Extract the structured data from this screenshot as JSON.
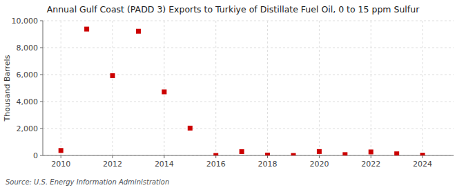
{
  "chart_data": {
    "type": "scatter",
    "title": "Annual Gulf Coast (PADD 3) Exports to Turkiye of Distillate Fuel Oil, 0 to 15 ppm Sulfur",
    "y_label": "Thousand Barrels",
    "source": "Source: U.S. Energy Information Administration",
    "x": [
      2010,
      2011,
      2012,
      2013,
      2014,
      2015,
      2016,
      2017,
      2018,
      2019,
      2020,
      2021,
      2022,
      2023,
      2024
    ],
    "values": [
      370,
      9380,
      5920,
      9220,
      4720,
      2030,
      0,
      280,
      30,
      0,
      290,
      60,
      260,
      120,
      20
    ],
    "color": "#cc0000",
    "marker": "square",
    "xlim": [
      2009.3,
      2025.2
    ],
    "ylim": [
      0,
      10000
    ],
    "xticks": [
      2010,
      2012,
      2014,
      2016,
      2018,
      2020,
      2022,
      2024
    ],
    "yticks": [
      0,
      {
        "value": 2000,
        "label": "2,000"
      },
      {
        "value": 4000,
        "label": "4,000"
      },
      {
        "value": 6000,
        "label": "6,000"
      },
      {
        "value": 8000,
        "label": "8,000"
      },
      {
        "value": 10000,
        "label": "10,000"
      }
    ],
    "grid": true
  }
}
